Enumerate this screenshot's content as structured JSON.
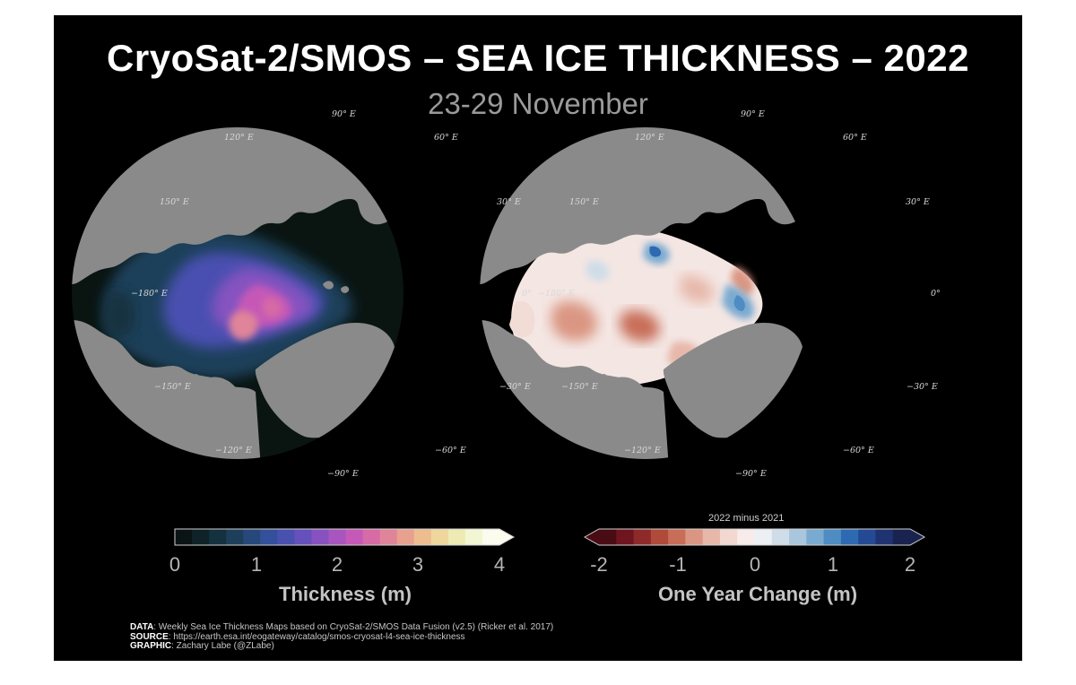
{
  "title": "CryoSat-2/SMOS – SEA ICE THICKNESS – 2022",
  "subtitle": "23-29 November",
  "map_labels": {
    "lon_90e": "90° E",
    "lon_120e": "120° E",
    "lon_60e": "60° E",
    "lon_150e": "150° E",
    "lon_30e": "30° E",
    "lon_180e": "−180° E",
    "lon_0e": "0°",
    "lon_150w": "−150° E",
    "lon_30w": "−30° E",
    "lon_120w": "−120° E",
    "lon_60w": "−60° E",
    "lon_90w": "−90° E"
  },
  "colorbars": {
    "thickness": {
      "title": "Thickness (m)",
      "ticks": [
        "0",
        "1",
        "2",
        "3",
        "4"
      ],
      "range": [
        0,
        4
      ],
      "colors": [
        "#0b1414",
        "#0e2228",
        "#143140",
        "#1d3f5a",
        "#27487a",
        "#34509a",
        "#4a50b0",
        "#6650bb",
        "#8752c0",
        "#a855bf",
        "#c559b7",
        "#d66ba5",
        "#e08499",
        "#e8a08f",
        "#edbd90",
        "#efd69c",
        "#eeeab3",
        "#f3f6d2",
        "#fbfbee"
      ],
      "extend": "max"
    },
    "change": {
      "subtitle": "2022 minus 2021",
      "title": "One Year Change (m)",
      "ticks": [
        "-2",
        "-1",
        "0",
        "1",
        "2"
      ],
      "range": [
        -2,
        2
      ],
      "colors": [
        "#4a0c14",
        "#6e1520",
        "#8e2a2a",
        "#b04a3a",
        "#c86e58",
        "#da9682",
        "#e7b8aa",
        "#f2d8d0",
        "#f7ecea",
        "#ecf0f4",
        "#cfdde8",
        "#a9c6dd",
        "#7aaad0",
        "#4e8cc2",
        "#2e6ab1",
        "#244a96",
        "#1f3370",
        "#1a2250"
      ],
      "extend": "both"
    }
  },
  "credits": {
    "data_label": "DATA",
    "data_text": ": Weekly Sea Ice Thickness Maps based on CryoSat-2/SMOS Data Fusion (v2.5) (Ricker et al. 2017)",
    "source_label": "SOURCE",
    "source_text": ": https://earth.esa.int/eogateway/catalog/smos-cryosat-l4-sea-ice-thickness",
    "graphic_label": "GRAPHIC",
    "graphic_text": ": Zachary Labe (@ZLabe)"
  },
  "colors": {
    "background": "#000000",
    "land": "#8a8a8a",
    "ocean": "#0a1512"
  }
}
